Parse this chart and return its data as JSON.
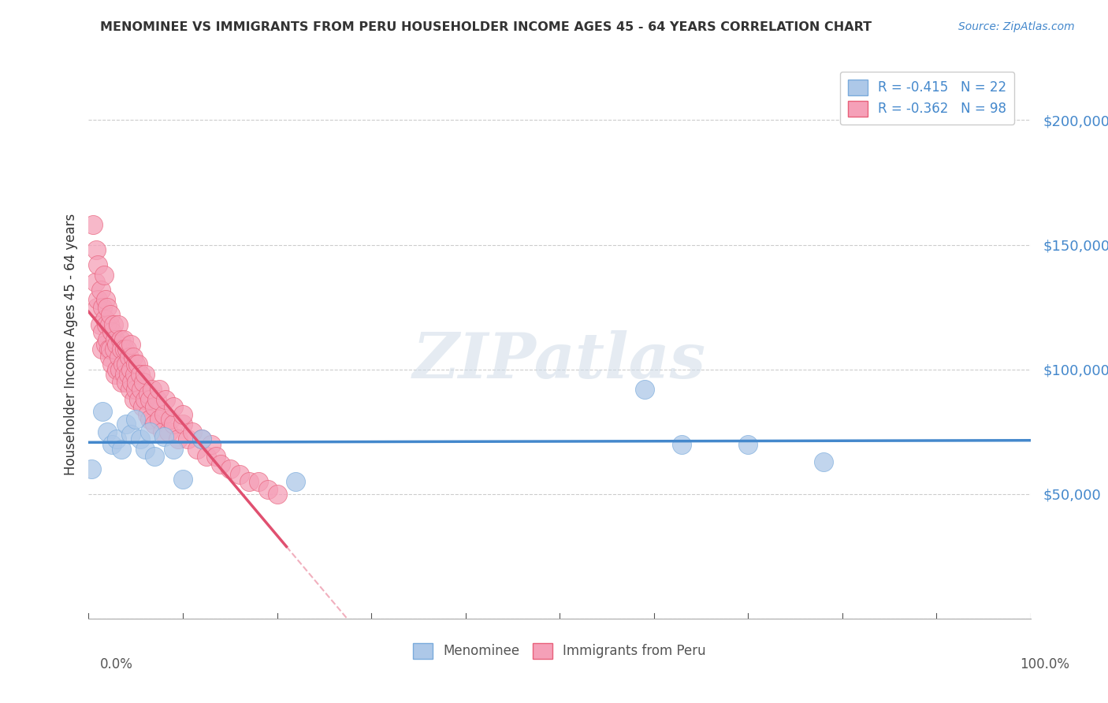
{
  "title": "MENOMINEE VS IMMIGRANTS FROM PERU HOUSEHOLDER INCOME AGES 45 - 64 YEARS CORRELATION CHART",
  "source": "Source: ZipAtlas.com",
  "ylabel": "Householder Income Ages 45 - 64 years",
  "legend_labels": [
    "Menominee",
    "Immigrants from Peru"
  ],
  "menominee_R": "-0.415",
  "menominee_N": "22",
  "peru_R": "-0.362",
  "peru_N": "98",
  "yticks": [
    0,
    50000,
    100000,
    150000,
    200000
  ],
  "ytick_labels": [
    "",
    "$50,000",
    "$100,000",
    "$150,000",
    "$200,000"
  ],
  "xlim": [
    0.0,
    1.0
  ],
  "ylim": [
    0,
    220000
  ],
  "menominee_color": "#adc8e8",
  "peru_color": "#f5a0b8",
  "menominee_edge_color": "#7aabdc",
  "peru_edge_color": "#e8607a",
  "menominee_line_color": "#4488cc",
  "peru_line_color": "#e05070",
  "watermark": "ZIPatlas",
  "menominee_x": [
    0.003,
    0.015,
    0.02,
    0.025,
    0.03,
    0.035,
    0.04,
    0.045,
    0.05,
    0.055,
    0.06,
    0.065,
    0.07,
    0.08,
    0.09,
    0.1,
    0.12,
    0.22,
    0.59,
    0.63,
    0.7,
    0.78
  ],
  "menominee_y": [
    60000,
    83000,
    75000,
    70000,
    72000,
    68000,
    78000,
    74000,
    80000,
    72000,
    68000,
    75000,
    65000,
    73000,
    68000,
    56000,
    72000,
    55000,
    92000,
    70000,
    70000,
    63000
  ],
  "peru_x": [
    0.005,
    0.007,
    0.008,
    0.009,
    0.01,
    0.01,
    0.012,
    0.013,
    0.014,
    0.015,
    0.015,
    0.016,
    0.017,
    0.018,
    0.018,
    0.019,
    0.02,
    0.02,
    0.021,
    0.022,
    0.022,
    0.023,
    0.023,
    0.025,
    0.025,
    0.026,
    0.027,
    0.028,
    0.028,
    0.03,
    0.03,
    0.031,
    0.032,
    0.033,
    0.034,
    0.035,
    0.035,
    0.036,
    0.037,
    0.038,
    0.038,
    0.04,
    0.04,
    0.041,
    0.042,
    0.043,
    0.044,
    0.045,
    0.045,
    0.046,
    0.047,
    0.048,
    0.049,
    0.05,
    0.05,
    0.051,
    0.052,
    0.053,
    0.055,
    0.056,
    0.057,
    0.058,
    0.06,
    0.06,
    0.062,
    0.063,
    0.065,
    0.065,
    0.067,
    0.07,
    0.07,
    0.072,
    0.075,
    0.075,
    0.078,
    0.08,
    0.082,
    0.085,
    0.087,
    0.09,
    0.09,
    0.095,
    0.1,
    0.1,
    0.105,
    0.11,
    0.115,
    0.12,
    0.125,
    0.13,
    0.135,
    0.14,
    0.15,
    0.16,
    0.17,
    0.18,
    0.19,
    0.2
  ],
  "peru_y": [
    158000,
    135000,
    148000,
    125000,
    142000,
    128000,
    118000,
    132000,
    108000,
    125000,
    115000,
    138000,
    120000,
    110000,
    128000,
    118000,
    125000,
    112000,
    108000,
    118000,
    105000,
    122000,
    108000,
    115000,
    102000,
    118000,
    108000,
    112000,
    98000,
    110000,
    100000,
    118000,
    105000,
    100000,
    112000,
    108000,
    95000,
    102000,
    112000,
    98000,
    108000,
    102000,
    95000,
    108000,
    98000,
    105000,
    92000,
    100000,
    110000,
    95000,
    105000,
    88000,
    98000,
    102000,
    92000,
    95000,
    102000,
    88000,
    98000,
    92000,
    85000,
    95000,
    88000,
    98000,
    82000,
    90000,
    88000,
    80000,
    92000,
    85000,
    78000,
    88000,
    80000,
    92000,
    75000,
    82000,
    88000,
    75000,
    80000,
    78000,
    85000,
    72000,
    78000,
    82000,
    72000,
    75000,
    68000,
    72000,
    65000,
    70000,
    65000,
    62000,
    60000,
    58000,
    55000,
    55000,
    52000,
    50000
  ]
}
